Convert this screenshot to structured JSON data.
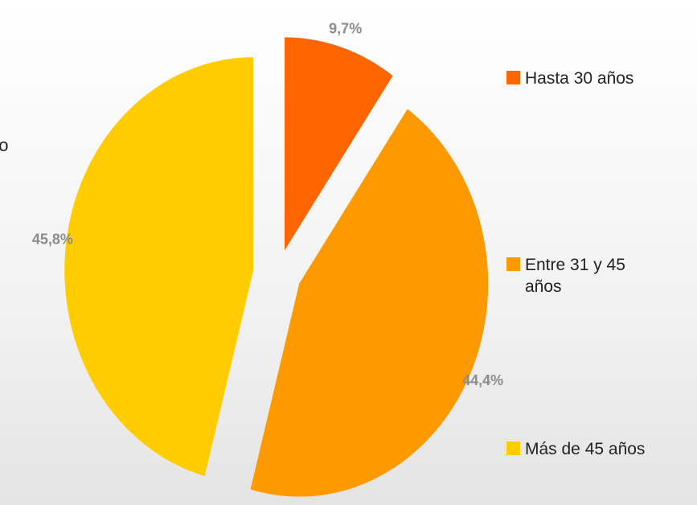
{
  "chart_data": {
    "type": "pie",
    "annotation": "rio",
    "categories": [
      "Hasta 30 años",
      "Entre 31 y 45 años",
      "Más de 45 años"
    ],
    "values": [
      9.7,
      44.4,
      45.8
    ],
    "value_labels": [
      "9,7%",
      "44,4%",
      "45,8%"
    ],
    "colors": [
      "#ff6600",
      "#ff9900",
      "#ffcc00"
    ],
    "legend": "right"
  }
}
